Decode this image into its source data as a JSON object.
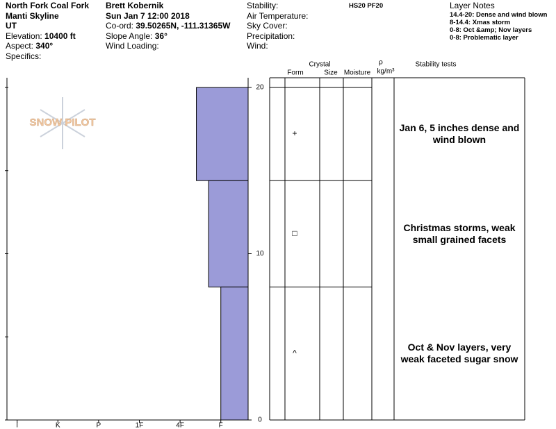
{
  "header": {
    "col1": [
      "North Fork Coal Fork",
      "Manti Skyline",
      "UT"
    ],
    "elevation": {
      "label": "Elevation:",
      "value": "10400 ft"
    },
    "aspect": {
      "label": "Aspect:",
      "value": "340°"
    },
    "specifics": "Specifics:",
    "observer": "Brett Kobernik",
    "date": "Sun Jan 7 12:00 2018",
    "coord": {
      "label": "Co-ord:",
      "value": "39.50265N, -111.31365W"
    },
    "slope": {
      "label": "Slope Angle:",
      "value": "36°"
    },
    "wind_loading": "Wind Loading:",
    "conditions": [
      "Stability:",
      "Air Temperature:",
      "Sky Cover:",
      "Precipitation:",
      "Wind:"
    ],
    "depth_summary": "HS20  PF20",
    "layer_notes_title": "Layer Notes",
    "layer_notes": [
      "14.4-20: Dense and wind blown",
      "8-14.4: Xmas storm",
      "0-8: Oct &amp; Nov layers",
      "0-8: Problematic layer"
    ]
  },
  "watermark": "SNOW PILOT",
  "chart_data": {
    "type": "snow-profile",
    "color": "#9b9bd8",
    "ylim": [
      0,
      20
    ],
    "yticks": [
      0,
      10,
      20
    ],
    "minor_yticks": [
      5,
      15
    ],
    "xlim": [
      6.25,
      0.33
    ],
    "xticks": [
      {
        "value": 6,
        "label": "I"
      },
      {
        "value": 5,
        "label": "K"
      },
      {
        "value": 4,
        "label": "P"
      },
      {
        "value": 3,
        "label": "1F"
      },
      {
        "value": 2,
        "label": "4F"
      },
      {
        "value": 1,
        "label": "F"
      }
    ],
    "table_headers": {
      "crystal": "Crystal",
      "form": "Form",
      "size": "Size",
      "moisture": "Moisture",
      "density": "ρ",
      "density_unit": "kg/m³",
      "stability": "Stability tests"
    },
    "layers": [
      {
        "top": 20,
        "bottom": 14.4,
        "hardness": 1.6,
        "form": "+",
        "comment": "Jan 6, 5 inches dense and wind blown"
      },
      {
        "top": 14.4,
        "bottom": 8,
        "hardness": 1.3,
        "form": "□",
        "comment": "Christmas storms, weak small grained facets"
      },
      {
        "top": 8,
        "bottom": 0,
        "hardness": 1.0,
        "form": "^",
        "comment": "Oct & Nov layers, very weak faceted sugar snow"
      }
    ]
  }
}
